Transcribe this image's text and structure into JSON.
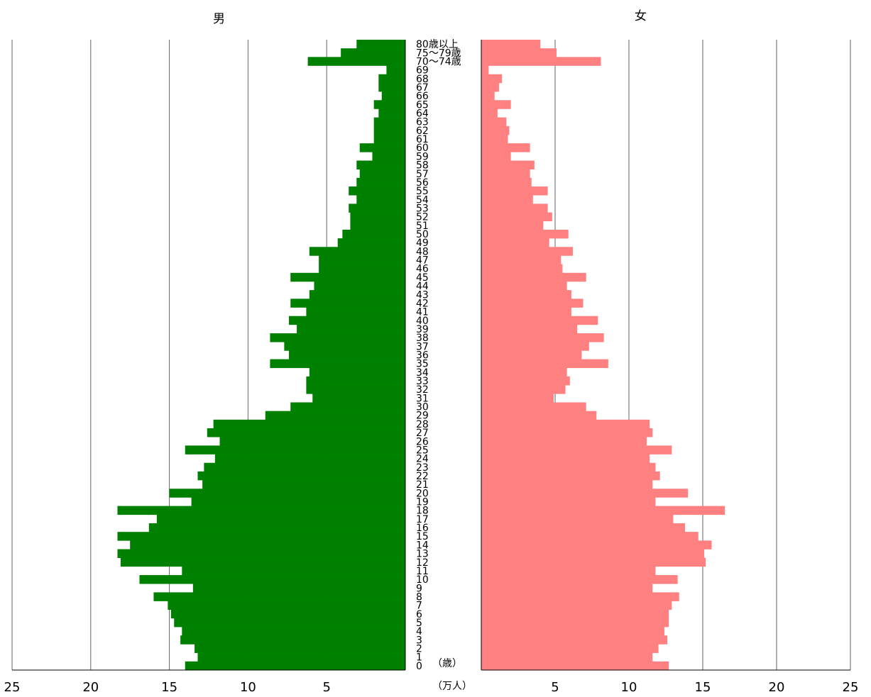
{
  "chart_data": {
    "type": "bar",
    "subtype": "population-pyramid",
    "titles": {
      "male": "男",
      "female": "女"
    },
    "age_labels": [
      "0",
      "1",
      "2",
      "3",
      "4",
      "5",
      "6",
      "7",
      "8",
      "9",
      "10",
      "11",
      "12",
      "13",
      "14",
      "15",
      "16",
      "17",
      "18",
      "19",
      "20",
      "21",
      "22",
      "23",
      "24",
      "25",
      "26",
      "27",
      "28",
      "29",
      "30",
      "31",
      "32",
      "33",
      "34",
      "35",
      "36",
      "37",
      "38",
      "39",
      "40",
      "41",
      "42",
      "43",
      "44",
      "45",
      "46",
      "47",
      "48",
      "49",
      "50",
      "51",
      "52",
      "53",
      "54",
      "55",
      "56",
      "57",
      "58",
      "59",
      "60",
      "61",
      "62",
      "63",
      "64",
      "65",
      "66",
      "67",
      "68",
      "69",
      "70～74歳",
      "75～79歳",
      "80歳以上"
    ],
    "age_unit_label": "（歳）",
    "x_unit_label": "（万人）",
    "x_ticks_male": [
      "25",
      "20",
      "15",
      "10",
      "5"
    ],
    "x_ticks_female": [
      "5",
      "10",
      "15",
      "20",
      "25"
    ],
    "xlim": [
      0,
      25
    ],
    "grid": true,
    "series": [
      {
        "name": "男",
        "color": "#008000",
        "values": [
          14.0,
          13.2,
          13.4,
          14.3,
          14.2,
          14.7,
          14.9,
          15.1,
          16.0,
          13.5,
          16.9,
          14.2,
          18.1,
          18.3,
          17.5,
          18.3,
          16.3,
          15.8,
          18.3,
          13.6,
          15.0,
          12.9,
          13.2,
          12.8,
          12.1,
          14.0,
          11.8,
          12.6,
          12.2,
          8.9,
          7.3,
          5.9,
          6.3,
          6.3,
          6.1,
          8.6,
          7.4,
          7.7,
          8.6,
          6.9,
          7.4,
          6.3,
          7.3,
          6.1,
          5.8,
          7.3,
          5.5,
          5.5,
          6.1,
          4.3,
          4.0,
          3.5,
          3.5,
          3.6,
          3.1,
          3.6,
          3.1,
          2.9,
          3.1,
          2.1,
          2.9,
          2.0,
          2.0,
          2.0,
          1.7,
          2.0,
          1.5,
          1.7,
          1.7,
          1.2,
          6.2,
          4.1,
          3.1
        ]
      },
      {
        "name": "女",
        "color": "#ff8080",
        "values": [
          12.7,
          11.6,
          12.0,
          12.6,
          12.4,
          12.7,
          12.7,
          12.9,
          13.4,
          11.6,
          13.3,
          11.8,
          15.2,
          15.1,
          15.6,
          14.7,
          13.8,
          13.0,
          16.5,
          11.8,
          14.0,
          11.6,
          12.1,
          11.8,
          11.4,
          12.9,
          11.2,
          11.6,
          11.4,
          7.8,
          7.1,
          4.9,
          5.7,
          6.0,
          5.8,
          8.6,
          6.8,
          7.3,
          8.3,
          6.5,
          7.9,
          6.1,
          6.9,
          6.1,
          5.8,
          7.1,
          5.5,
          5.4,
          6.2,
          4.6,
          5.9,
          4.2,
          4.8,
          4.5,
          3.5,
          4.5,
          3.4,
          3.3,
          3.6,
          2.0,
          3.3,
          1.8,
          1.9,
          1.7,
          1.1,
          2.0,
          0.9,
          1.2,
          1.4,
          0.5,
          8.1,
          5.1,
          4.0
        ]
      }
    ]
  }
}
